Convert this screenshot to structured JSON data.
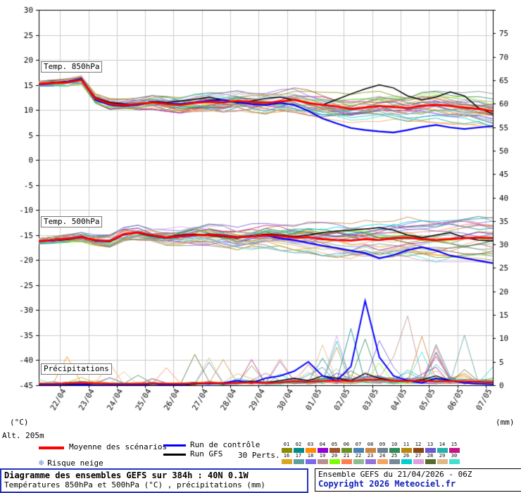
{
  "labels": {
    "temp850": "Temp. 850hPa",
    "temp500": "Temp. 500hPa",
    "precip": "Précipitations",
    "unit_left": "(°C)",
    "unit_right": "(mm)",
    "altitude": "Alt. 205m"
  },
  "icons": {
    "snowflake": "❄"
  },
  "legend": {
    "mean": "Moyenne des scénarios",
    "control": "Run de contrôle",
    "gfs": "Run GFS",
    "perts": "30 Perts.",
    "snow": "Risque neige",
    "member_numbers": [
      "01",
      "02",
      "03",
      "04",
      "05",
      "06",
      "07",
      "08",
      "09",
      "10",
      "11",
      "12",
      "13",
      "14",
      "15",
      "16",
      "17",
      "18",
      "19",
      "20",
      "21",
      "22",
      "23",
      "24",
      "25",
      "26",
      "27",
      "28",
      "29",
      "30"
    ]
  },
  "footer": {
    "title": "Diagramme des ensembles GEFS sur 384h : 40N 0.1W",
    "subtitle": "Températures 850hPa et 500hPa (°C) , précipitations (mm)",
    "run_info": "Ensemble GEFS du 21/04/2026 - 06Z",
    "copyright": "Copyright 2026 Meteociel.fr"
  },
  "colors": {
    "mean": "#ff0000",
    "control": "#0000ff",
    "gfs": "#000000",
    "grid": "#cccccc",
    "axis": "#000000",
    "snow": "#5b8dd9",
    "members": [
      "#8b8b00",
      "#008b8b",
      "#ff8c00",
      "#9400d3",
      "#a0522d",
      "#6b8e23",
      "#4682b4",
      "#cd853f",
      "#708090",
      "#2e8b57",
      "#b8860b",
      "#8b4513",
      "#6a5acd",
      "#20b2aa",
      "#c71585",
      "#daa520",
      "#5f9ea0",
      "#7b68ee",
      "#bc8f8f",
      "#7cfc00",
      "#ff7f50",
      "#8fbc8f",
      "#9370db",
      "#f4a460",
      "#778899",
      "#00ced1",
      "#dda0dd",
      "#556b2f",
      "#deb887",
      "#40e0d0"
    ]
  },
  "chart_data": {
    "type": "line",
    "title": "Diagramme des ensembles GEFS sur 384h : 40N 0.1W",
    "x_hours": [
      0,
      12,
      24,
      36,
      48,
      60,
      72,
      84,
      96,
      108,
      120,
      132,
      144,
      156,
      168,
      180,
      192,
      204,
      216,
      228,
      240,
      252,
      264,
      276,
      288,
      300,
      312,
      324,
      336,
      348,
      360,
      372,
      384
    ],
    "x_tick_hours": [
      18,
      42,
      66,
      90,
      114,
      138,
      162,
      186,
      210,
      234,
      258,
      282,
      306,
      330,
      354,
      378
    ],
    "x_tick_labels": [
      "22/04",
      "23/04",
      "24/04",
      "25/04",
      "26/04",
      "27/04",
      "28/04",
      "29/04",
      "30/04",
      "01/05",
      "02/05",
      "03/05",
      "04/05",
      "05/05",
      "06/05",
      "07/05"
    ],
    "y_left": {
      "label": "(°C)",
      "min": -45,
      "max": 30,
      "step": 5
    },
    "y_right": {
      "label": "(mm)",
      "min": 0,
      "max": 80,
      "step": 5
    },
    "series": {
      "temp850": {
        "mean": [
          15.2,
          15.4,
          15.5,
          16.0,
          12.3,
          11.2,
          11.0,
          11.2,
          11.5,
          11.2,
          11.0,
          11.4,
          11.6,
          11.5,
          11.8,
          11.6,
          11.4,
          11.7,
          12.0,
          11.4,
          11.0,
          10.7,
          10.2,
          10.5,
          10.8,
          10.6,
          10.4,
          10.8,
          11.0,
          10.8,
          10.5,
          10.2,
          9.8
        ],
        "control": [
          15.1,
          15.3,
          15.6,
          16.2,
          12.0,
          11.0,
          10.8,
          11.0,
          11.6,
          11.3,
          11.2,
          11.5,
          11.9,
          12.0,
          11.5,
          11.2,
          11.0,
          11.4,
          11.0,
          9.8,
          8.3,
          7.3,
          6.4,
          6.0,
          5.7,
          5.5,
          6.0,
          6.6,
          7.0,
          6.5,
          6.2,
          6.5,
          6.8
        ],
        "gfs": [
          15.2,
          15.5,
          15.7,
          16.1,
          12.5,
          11.5,
          11.2,
          11.0,
          11.7,
          11.5,
          11.8,
          12.1,
          12.6,
          12.0,
          11.4,
          11.8,
          12.3,
          12.6,
          12.0,
          11.4,
          11.0,
          12.1,
          13.2,
          14.2,
          15.0,
          14.4,
          12.8,
          12.0,
          12.6,
          13.6,
          12.8,
          10.4,
          9.2
        ]
      },
      "temp500": {
        "mean": [
          -16.2,
          -16.0,
          -15.7,
          -15.4,
          -16.0,
          -16.2,
          -14.8,
          -14.5,
          -15.0,
          -15.5,
          -15.2,
          -15.0,
          -14.9,
          -15.1,
          -15.5,
          -15.3,
          -15.0,
          -15.2,
          -15.5,
          -15.4,
          -15.8,
          -16.0,
          -16.1,
          -15.8,
          -16.0,
          -15.6,
          -15.5,
          -15.8,
          -16.0,
          -15.8,
          -15.6,
          -15.5,
          -15.6
        ],
        "control": [
          -16.2,
          -16.1,
          -15.8,
          -15.3,
          -16.1,
          -16.3,
          -14.9,
          -14.4,
          -15.1,
          -15.6,
          -15.3,
          -15.1,
          -14.8,
          -15.0,
          -15.4,
          -15.2,
          -15.1,
          -15.6,
          -16.0,
          -16.6,
          -17.1,
          -17.6,
          -18.1,
          -18.6,
          -19.6,
          -19.0,
          -18.0,
          -17.4,
          -18.1,
          -19.1,
          -19.6,
          -20.1,
          -20.6
        ],
        "gfs": [
          -16.2,
          -16.1,
          -15.9,
          -15.5,
          -16.1,
          -16.2,
          -14.7,
          -14.6,
          -15.2,
          -15.4,
          -15.0,
          -14.8,
          -15.1,
          -15.3,
          -15.6,
          -15.2,
          -14.8,
          -15.0,
          -15.3,
          -15.0,
          -14.5,
          -14.2,
          -14.0,
          -13.8,
          -13.5,
          -14.0,
          -15.0,
          -15.5,
          -15.0,
          -14.5,
          -15.5,
          -16.0,
          -16.2
        ]
      },
      "precip_mm": {
        "mean": [
          0.3,
          0.3,
          0.4,
          0.5,
          0.4,
          0.3,
          0.3,
          0.3,
          0.4,
          0.3,
          0.3,
          0.4,
          0.5,
          0.4,
          0.5,
          0.6,
          0.5,
          0.6,
          0.8,
          0.7,
          0.9,
          1.0,
          0.9,
          1.1,
          1.2,
          1.0,
          0.9,
          1.0,
          0.8,
          0.9,
          0.8,
          0.7,
          0.6
        ],
        "control": [
          0,
          0,
          0,
          0.2,
          0,
          0,
          0,
          0,
          0.3,
          0,
          0,
          0.5,
          0.3,
          0.5,
          1.0,
          0.5,
          1.5,
          2.0,
          3.0,
          5.0,
          2.0,
          1.0,
          4.0,
          18.0,
          6.0,
          2.0,
          1.0,
          0.5,
          1.5,
          1.0,
          0.5,
          0.3,
          0.2
        ],
        "gfs": [
          0,
          0,
          0.2,
          0.3,
          0,
          0,
          0.1,
          0,
          0.2,
          0.3,
          0,
          0.2,
          0.4,
          0.3,
          0.5,
          0.8,
          0.5,
          1.0,
          1.5,
          1.0,
          2.0,
          1.5,
          1.0,
          2.5,
          1.5,
          1.0,
          0.8,
          1.2,
          2.0,
          1.0,
          0.5,
          0.8,
          0.5
        ]
      }
    },
    "ensemble": {
      "members": 30,
      "spread_850_end": 4,
      "spread_500_end": 5,
      "precip_max_spike": 18
    }
  }
}
